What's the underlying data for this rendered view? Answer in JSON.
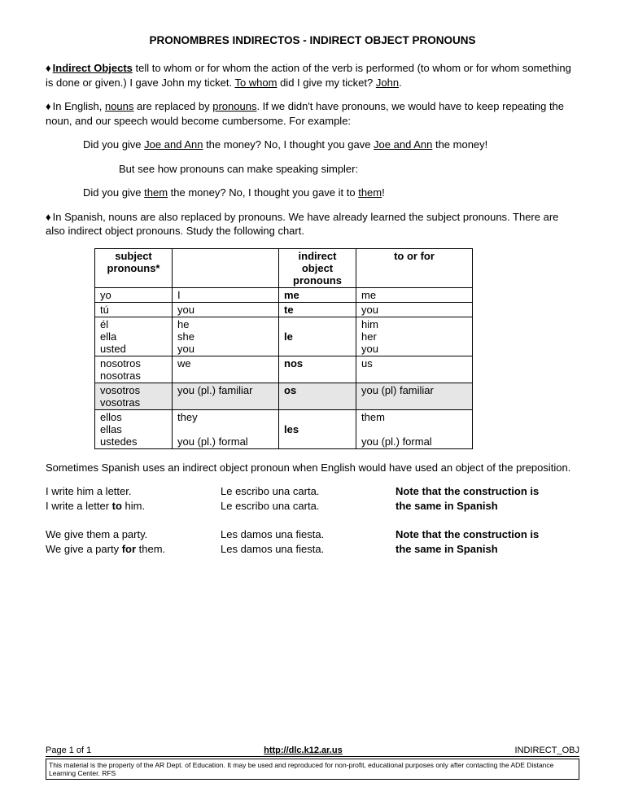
{
  "title": "PRONOMBRES  INDIRECTOS - INDIRECT OBJECT PRONOUNS",
  "p1_lead": "Indirect Objects",
  "p1_text": " tell to whom or for whom the action of the verb is performed (to whom or for whom something is done or given.) I gave John my ticket.  ",
  "p1_u2": "To whom",
  "p1_mid": " did I give my ticket? ",
  "p1_u3": "John",
  "p1_end": ".",
  "p2_a": "In English, ",
  "p2_u1": "nouns",
  "p2_b": " are replaced by ",
  "p2_u2": "pronouns",
  "p2_c": ".  If we didn't have pronouns, we would have to keep repeating the noun, and our speech would become cumbersome. For example:",
  "ex1_a": "Did you give ",
  "ex1_u1": "Joe and Ann",
  "ex1_b": " the money?  No, I thought you gave ",
  "ex1_u2": "Joe and Ann",
  "ex1_c": " the money!",
  "ex2": "But see how pronouns can make speaking simpler:",
  "ex3_a": "Did you give ",
  "ex3_u1": "them",
  "ex3_b": " the money?  No, I thought you gave it to ",
  "ex3_u2": "them",
  "ex3_c": "!",
  "p3": "In Spanish, nouns are also replaced by pronouns.  We have already learned the subject pronouns.  There are also indirect object pronouns.  Study the following chart.",
  "chart": {
    "headers": [
      "subject pronouns*",
      "",
      "indirect object pronouns",
      "to or for"
    ],
    "rows": [
      {
        "c": [
          "yo",
          "I",
          "me",
          "me"
        ],
        "bold3": true
      },
      {
        "c": [
          "tú",
          "you",
          "te",
          "you"
        ],
        "bold3": true
      },
      {
        "c": [
          "él\nella\nusted",
          "he\nshe\nyou",
          "\nle",
          "him\nher\nyou"
        ],
        "bold3": true
      },
      {
        "c": [
          "nosotros\nnosotras",
          "we",
          "nos",
          "us"
        ],
        "bold3": true
      },
      {
        "c": [
          "vosotros\nvosotras",
          "you (pl.) familiar",
          "os",
          "you (pl) familiar"
        ],
        "bold3": true,
        "shaded": true
      },
      {
        "c": [
          "ellos\nellas\nustedes",
          "they\n\nyou (pl.) formal",
          "\nles",
          "them\n\nyou (pl.) formal"
        ],
        "bold3": true
      }
    ]
  },
  "p4": "Sometimes Spanish uses an indirect object pronoun when English would have used an object of the preposition.",
  "grid": [
    [
      "I write him a letter.",
      "Le escribo una carta.",
      "Note that the construction is"
    ],
    [
      "I write a letter <b>to</b> him.",
      "Le escribo una carta.",
      "the same in Spanish"
    ],
    [
      "",
      "",
      ""
    ],
    [
      "We give them a party.",
      "Les damos una fiesta.",
      "Note that the construction is"
    ],
    [
      "We give a party <b>for</b> them.",
      "Les damos una fiesta.",
      "the same in Spanish"
    ]
  ],
  "footer": {
    "left": "Page 1 of 1",
    "center": "http://dlc.k12.ar.us",
    "right": "INDIRECT_OBJ",
    "box": "This material is the property of the AR Dept. of Education.   It may be used and reproduced for non-profit, educational purposes only after contacting the ADE Distance Learning Center. RFS"
  }
}
